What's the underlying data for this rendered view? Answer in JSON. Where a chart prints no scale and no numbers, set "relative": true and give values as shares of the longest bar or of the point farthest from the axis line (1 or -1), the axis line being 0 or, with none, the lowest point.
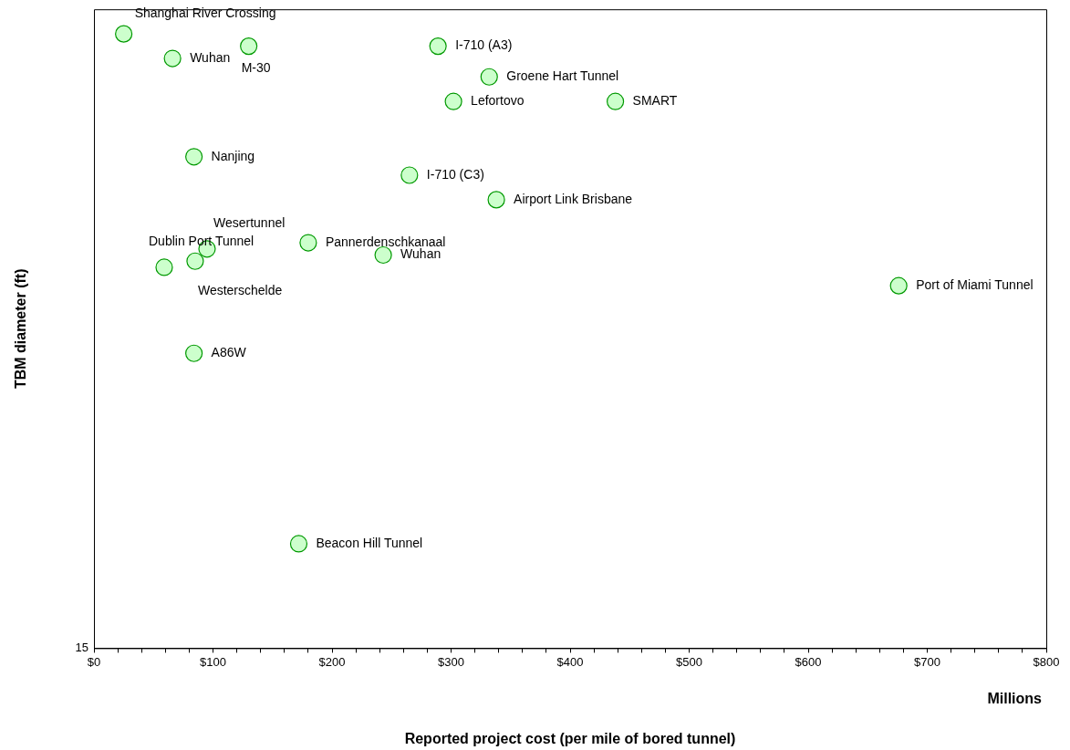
{
  "chart_data": {
    "type": "scatter",
    "xlabel": "Reported project cost (per mile of bored tunnel)",
    "ylabel": "TBM diameter (ft)",
    "relative": true,
    "marker": "circle",
    "grid": false,
    "legend": false,
    "xlim": [
      0,
      800
    ],
    "xticks": [
      {
        "value": 0,
        "label": "$0"
      },
      {
        "value": 20,
        "label": null
      },
      {
        "value": 40,
        "label": null
      },
      {
        "value": 60,
        "label": null
      },
      {
        "value": 80,
        "label": null
      },
      {
        "value": 100,
        "label": "$100"
      },
      {
        "value": 120,
        "label": null
      },
      {
        "value": 140,
        "label": null
      },
      {
        "value": 160,
        "label": null
      },
      {
        "value": 180,
        "label": null
      },
      {
        "value": 200,
        "label": "$200"
      },
      {
        "value": 220,
        "label": null
      },
      {
        "value": 240,
        "label": null
      },
      {
        "value": 260,
        "label": null
      },
      {
        "value": 280,
        "label": null
      },
      {
        "value": 300,
        "label": "$300"
      },
      {
        "value": 320,
        "label": null
      },
      {
        "value": 340,
        "label": null
      },
      {
        "value": 360,
        "label": null
      },
      {
        "value": 380,
        "label": null
      },
      {
        "value": 400,
        "label": "$400"
      },
      {
        "value": 420,
        "label": null
      },
      {
        "value": 440,
        "label": null
      },
      {
        "value": 460,
        "label": null
      },
      {
        "value": 480,
        "label": null
      },
      {
        "value": 500,
        "label": "$500"
      },
      {
        "value": 520,
        "label": null
      },
      {
        "value": 540,
        "label": null
      },
      {
        "value": 560,
        "label": null
      },
      {
        "value": 580,
        "label": null
      },
      {
        "value": 600,
        "label": "$600"
      },
      {
        "value": 620,
        "label": null
      },
      {
        "value": 640,
        "label": null
      },
      {
        "value": 660,
        "label": null
      },
      {
        "value": 680,
        "label": null
      },
      {
        "value": 700,
        "label": "$700"
      },
      {
        "value": 720,
        "label": null
      },
      {
        "value": 740,
        "label": null
      },
      {
        "value": 760,
        "label": null
      },
      {
        "value": 780,
        "label": null
      },
      {
        "value": 800,
        "label": "$800"
      }
    ],
    "series": [
      {
        "color": "#ccffcc",
        "x": [
          25,
          66,
          130,
          289,
          332,
          302,
          438,
          84,
          265,
          338,
          95,
          59,
          85,
          180,
          243,
          676,
          84,
          172
        ],
        "values": [
          1.0,
          0.96,
          0.98,
          0.98,
          0.93,
          0.89,
          0.89,
          0.8,
          0.77,
          0.73,
          0.65,
          0.62,
          0.63,
          0.66,
          0.64,
          0.59,
          0.48,
          0.17
        ]
      }
    ],
    "annotations": [
      {
        "text": "Shanghai River Crossing",
        "x": 25,
        "y": 1.0
      },
      {
        "text": "Wuhan",
        "x": 66,
        "y": 0.96
      },
      {
        "text": "M-30",
        "x": 130,
        "y": 0.98
      },
      {
        "text": "I-710 (A3)",
        "x": 289,
        "y": 0.98
      },
      {
        "text": "Groene Hart Tunnel",
        "x": 332,
        "y": 0.93
      },
      {
        "text": "Lefortovo",
        "x": 302,
        "y": 0.89
      },
      {
        "text": "SMART",
        "x": 438,
        "y": 0.89
      },
      {
        "text": "Nanjing",
        "x": 84,
        "y": 0.8
      },
      {
        "text": "I-710 (C3)",
        "x": 265,
        "y": 0.77
      },
      {
        "text": "Airport Link Brisbane",
        "x": 338,
        "y": 0.73
      },
      {
        "text": "Wesertunnel",
        "x": 95,
        "y": 0.65
      },
      {
        "text": "Dublin Port Tunnel",
        "x": 59,
        "y": 0.62
      },
      {
        "text": "Westerschelde",
        "x": 85,
        "y": 0.63
      },
      {
        "text": "Pannerdenschkanaal",
        "x": 180,
        "y": 0.66
      },
      {
        "text": "Wuhan",
        "x": 243,
        "y": 0.64
      },
      {
        "text": "Port of Miami Tunnel",
        "x": 676,
        "y": 0.59
      },
      {
        "text": "A86W",
        "x": 84,
        "y": 0.48
      },
      {
        "text": "Beacon Hill Tunnel",
        "x": 172,
        "y": 0.17
      },
      "Millions",
      "15"
    ]
  }
}
